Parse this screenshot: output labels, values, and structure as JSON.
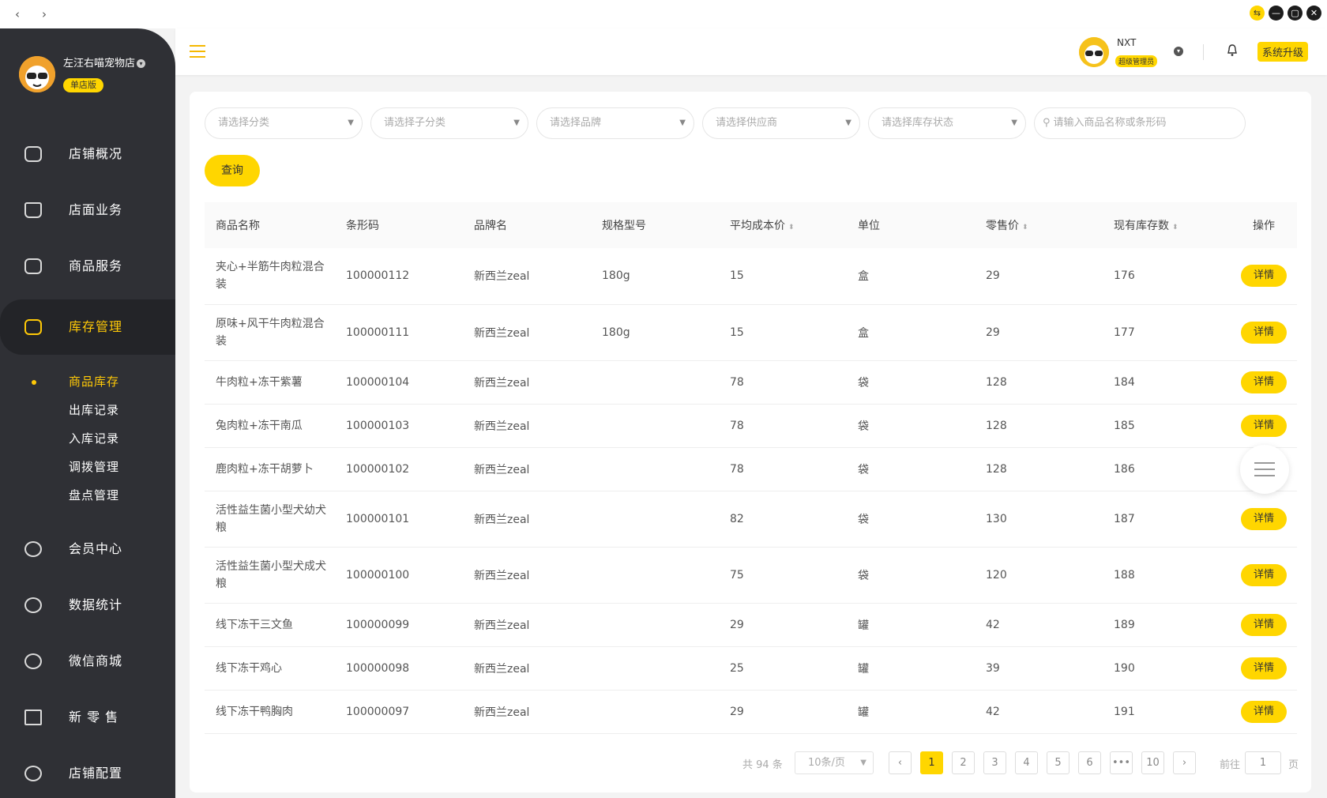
{
  "window": {
    "back_icon": "‹",
    "forward_icon": "›",
    "controls": [
      "⇆",
      "—",
      "▢",
      "✕"
    ]
  },
  "store": {
    "name": "左汪右喵宠物店",
    "badge": "单店版"
  },
  "menu": [
    {
      "label": "店铺概况",
      "icon": "monitor-icon"
    },
    {
      "label": "店面业务",
      "icon": "home-icon"
    },
    {
      "label": "商品服务",
      "icon": "bag-icon"
    },
    {
      "label": "库存管理",
      "icon": "box-icon",
      "active": true
    },
    {
      "label": "会员中心",
      "icon": "member-icon"
    },
    {
      "label": "数据统计",
      "icon": "chart-icon"
    },
    {
      "label": "微信商城",
      "icon": "wechat-icon"
    },
    {
      "label": "新 零 售",
      "icon": "package-icon"
    },
    {
      "label": "店铺配置",
      "icon": "settings-icon"
    }
  ],
  "submenu": [
    "商品库存",
    "出库记录",
    "入库记录",
    "调拨管理",
    "盘点管理"
  ],
  "user": {
    "name": "NXT",
    "role": "超级管理员",
    "upgrade": "系统升级"
  },
  "filters": {
    "category": "请选择分类",
    "subcategory": "请选择子分类",
    "brand": "请选择品牌",
    "supplier": "请选择供应商",
    "stock_status": "请选择库存状态",
    "search": "请输入商品名称或条形码",
    "query_button": "查询"
  },
  "table": {
    "headers": [
      "商品名称",
      "条形码",
      "品牌名",
      "规格型号",
      "平均成本价",
      "单位",
      "零售价",
      "现有库存数",
      "操作"
    ],
    "action_label": "详情",
    "rows": [
      {
        "name": "夹心+半筋牛肉粒混合装",
        "barcode": "100000112",
        "brand": "新西兰zeal",
        "spec": "180g",
        "cost": "15",
        "unit": "盒",
        "price": "29",
        "stock": "176"
      },
      {
        "name": "原味+风干牛肉粒混合装",
        "barcode": "100000111",
        "brand": "新西兰zeal",
        "spec": "180g",
        "cost": "15",
        "unit": "盒",
        "price": "29",
        "stock": "177"
      },
      {
        "name": "牛肉粒+冻干紫薯",
        "barcode": "100000104",
        "brand": "新西兰zeal",
        "spec": "",
        "cost": "78",
        "unit": "袋",
        "price": "128",
        "stock": "184"
      },
      {
        "name": "兔肉粒+冻干南瓜",
        "barcode": "100000103",
        "brand": "新西兰zeal",
        "spec": "",
        "cost": "78",
        "unit": "袋",
        "price": "128",
        "stock": "185"
      },
      {
        "name": "鹿肉粒+冻干胡萝卜",
        "barcode": "100000102",
        "brand": "新西兰zeal",
        "spec": "",
        "cost": "78",
        "unit": "袋",
        "price": "128",
        "stock": "186"
      },
      {
        "name": "活性益生菌小型犬幼犬粮",
        "barcode": "100000101",
        "brand": "新西兰zeal",
        "spec": "",
        "cost": "82",
        "unit": "袋",
        "price": "130",
        "stock": "187"
      },
      {
        "name": "活性益生菌小型犬成犬粮",
        "barcode": "100000100",
        "brand": "新西兰zeal",
        "spec": "",
        "cost": "75",
        "unit": "袋",
        "price": "120",
        "stock": "188"
      },
      {
        "name": "线下冻干三文鱼",
        "barcode": "100000099",
        "brand": "新西兰zeal",
        "spec": "",
        "cost": "29",
        "unit": "罐",
        "price": "42",
        "stock": "189"
      },
      {
        "name": "线下冻干鸡心",
        "barcode": "100000098",
        "brand": "新西兰zeal",
        "spec": "",
        "cost": "25",
        "unit": "罐",
        "price": "39",
        "stock": "190"
      },
      {
        "name": "线下冻干鸭胸肉",
        "barcode": "100000097",
        "brand": "新西兰zeal",
        "spec": "",
        "cost": "29",
        "unit": "罐",
        "price": "42",
        "stock": "191"
      }
    ]
  },
  "pagination": {
    "total": "共 94 条",
    "page_size": "10条/页",
    "pages": [
      "1",
      "2",
      "3",
      "4",
      "5",
      "6",
      "•••",
      "10"
    ],
    "current": "1",
    "goto_label": "前往",
    "goto_value": "1",
    "page_unit": "页"
  },
  "colors": {
    "accent": "#ffd600",
    "sidebar": "#2f3035",
    "active_text": "#ffc907"
  }
}
